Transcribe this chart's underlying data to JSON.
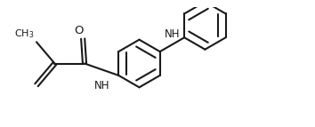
{
  "bg_color": "#ffffff",
  "line_color": "#1a1a1a",
  "line_width": 1.5,
  "font_size": 8.5,
  "figsize": [
    3.54,
    1.43
  ],
  "dpi": 100,
  "xlim": [
    0,
    9.5
  ],
  "ylim": [
    0,
    3.4
  ]
}
